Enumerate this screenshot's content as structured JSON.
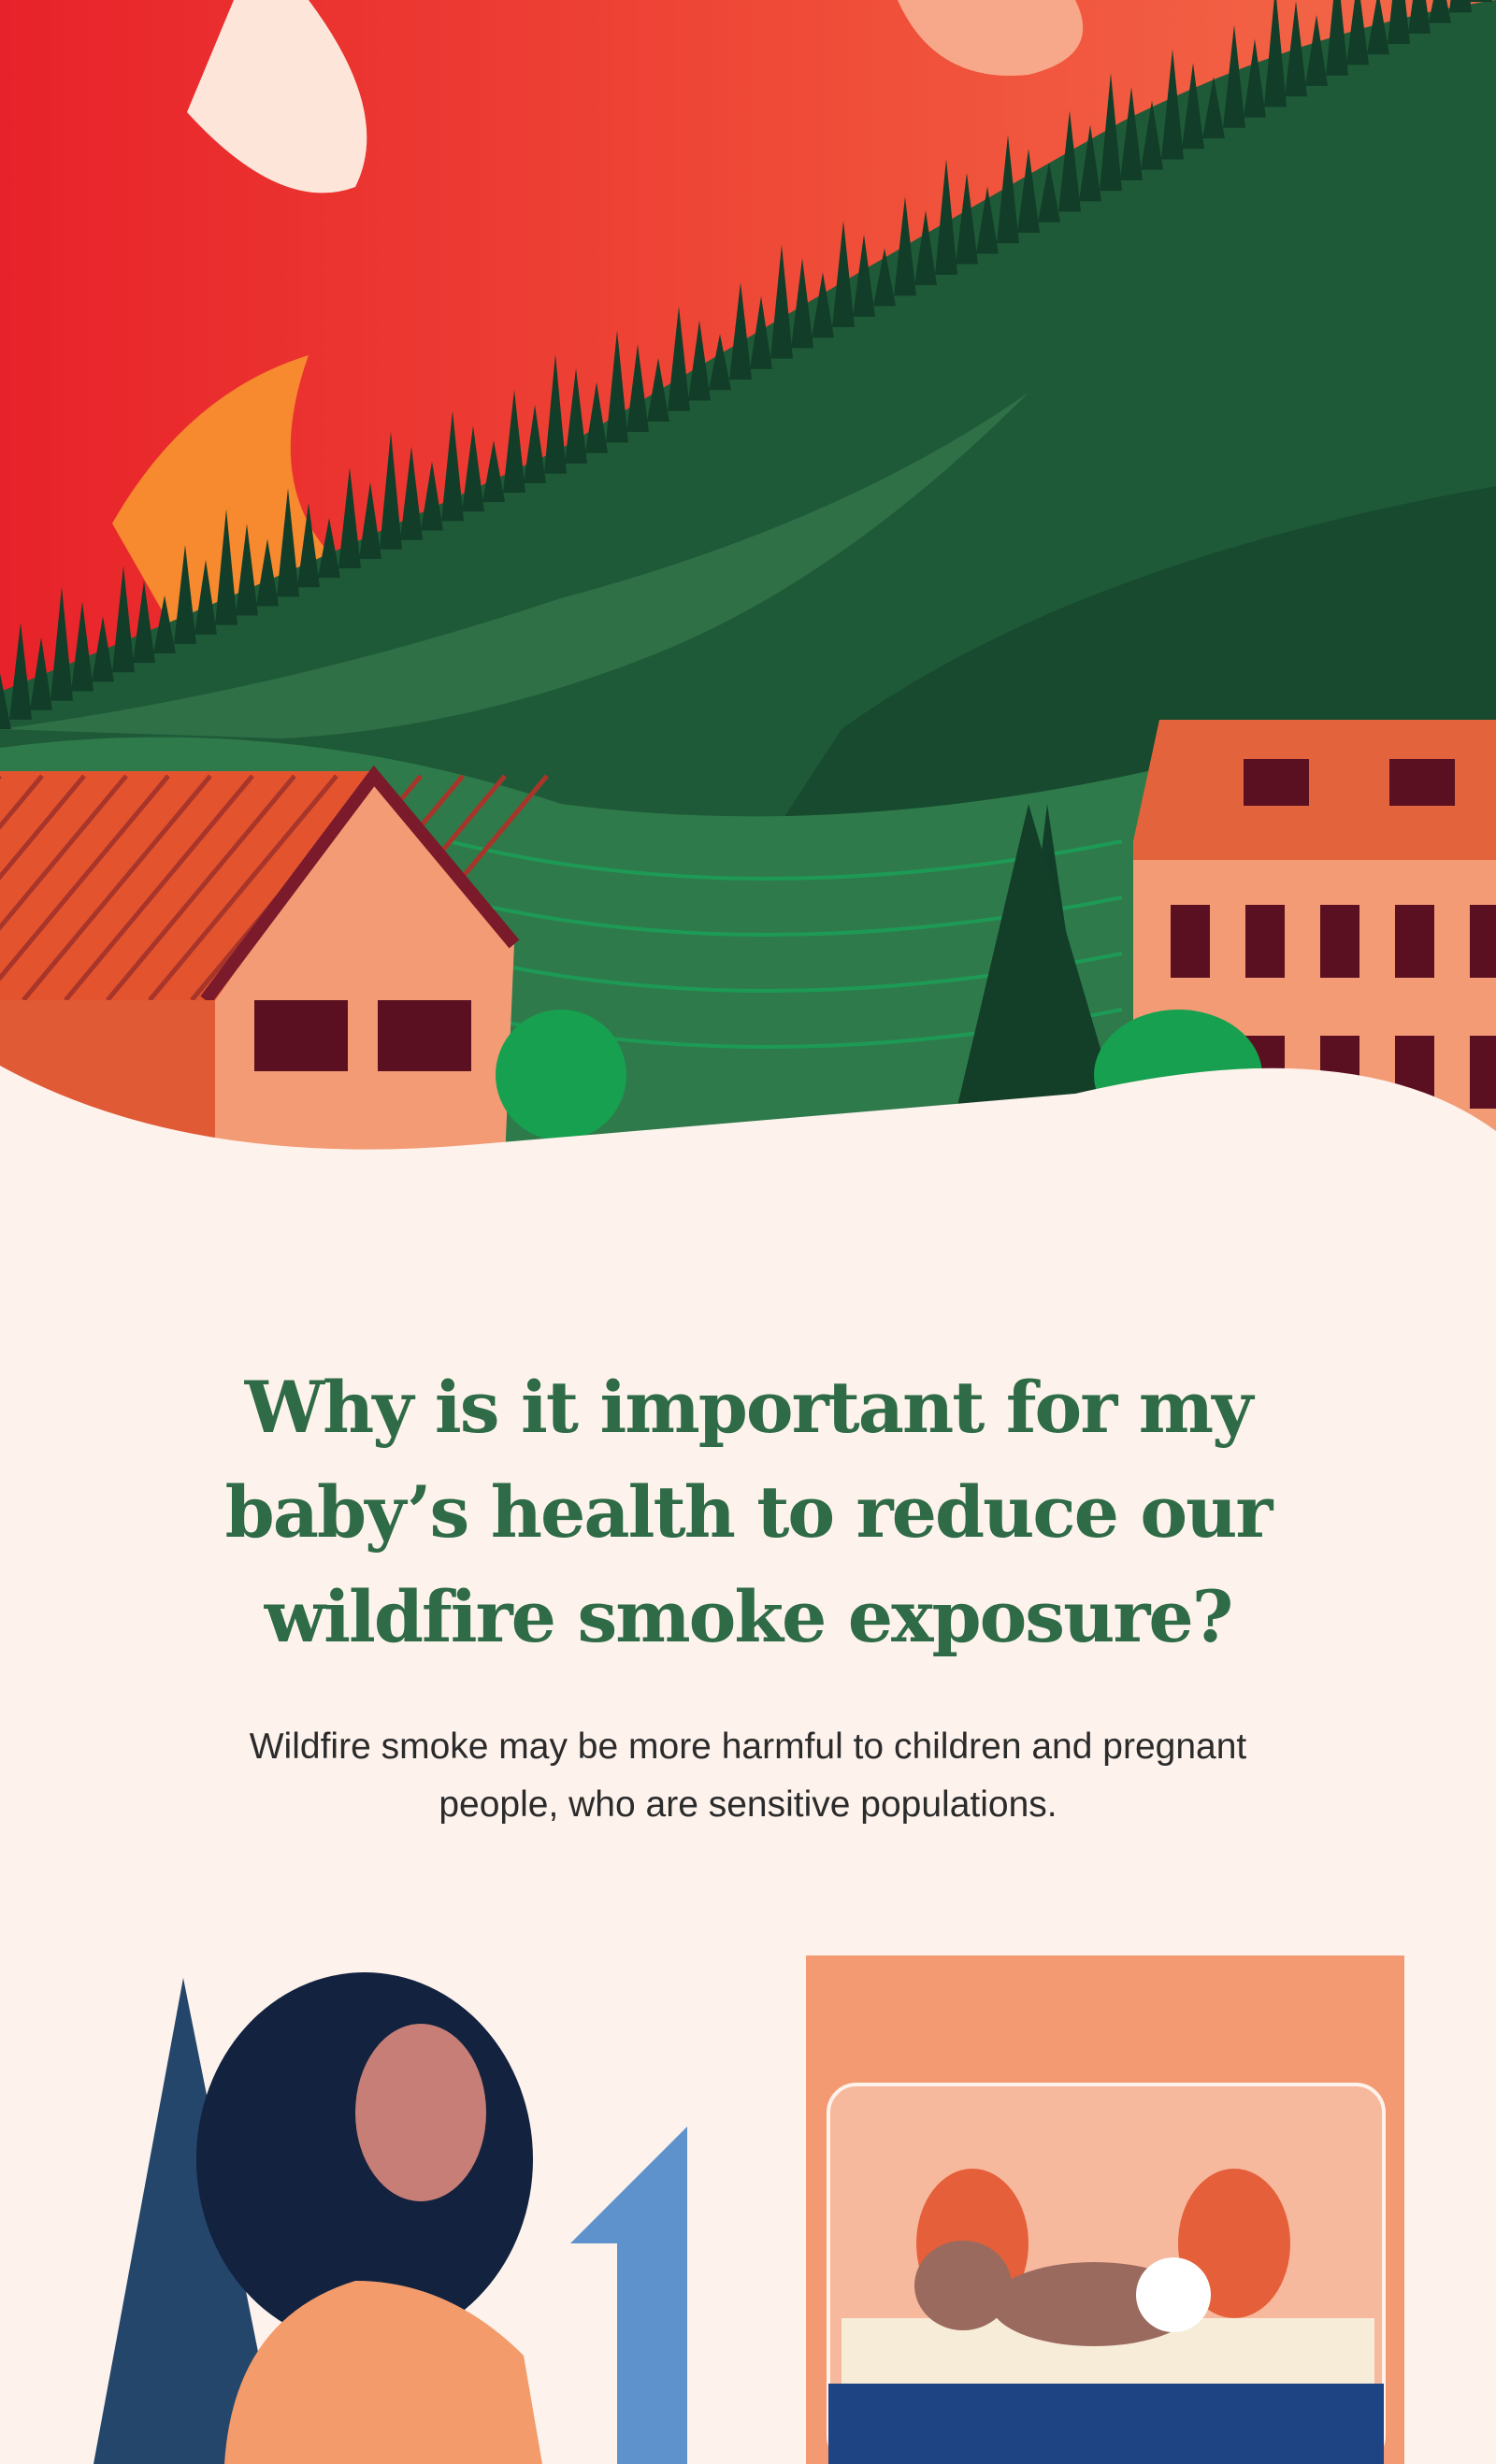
{
  "section": {
    "heading": "Why is it important for my baby’s health to reduce our wildfire smoke exposure?",
    "body": "Wildfire smoke may be more harmful to children and pregnant people, who are sensitive populations."
  }
}
